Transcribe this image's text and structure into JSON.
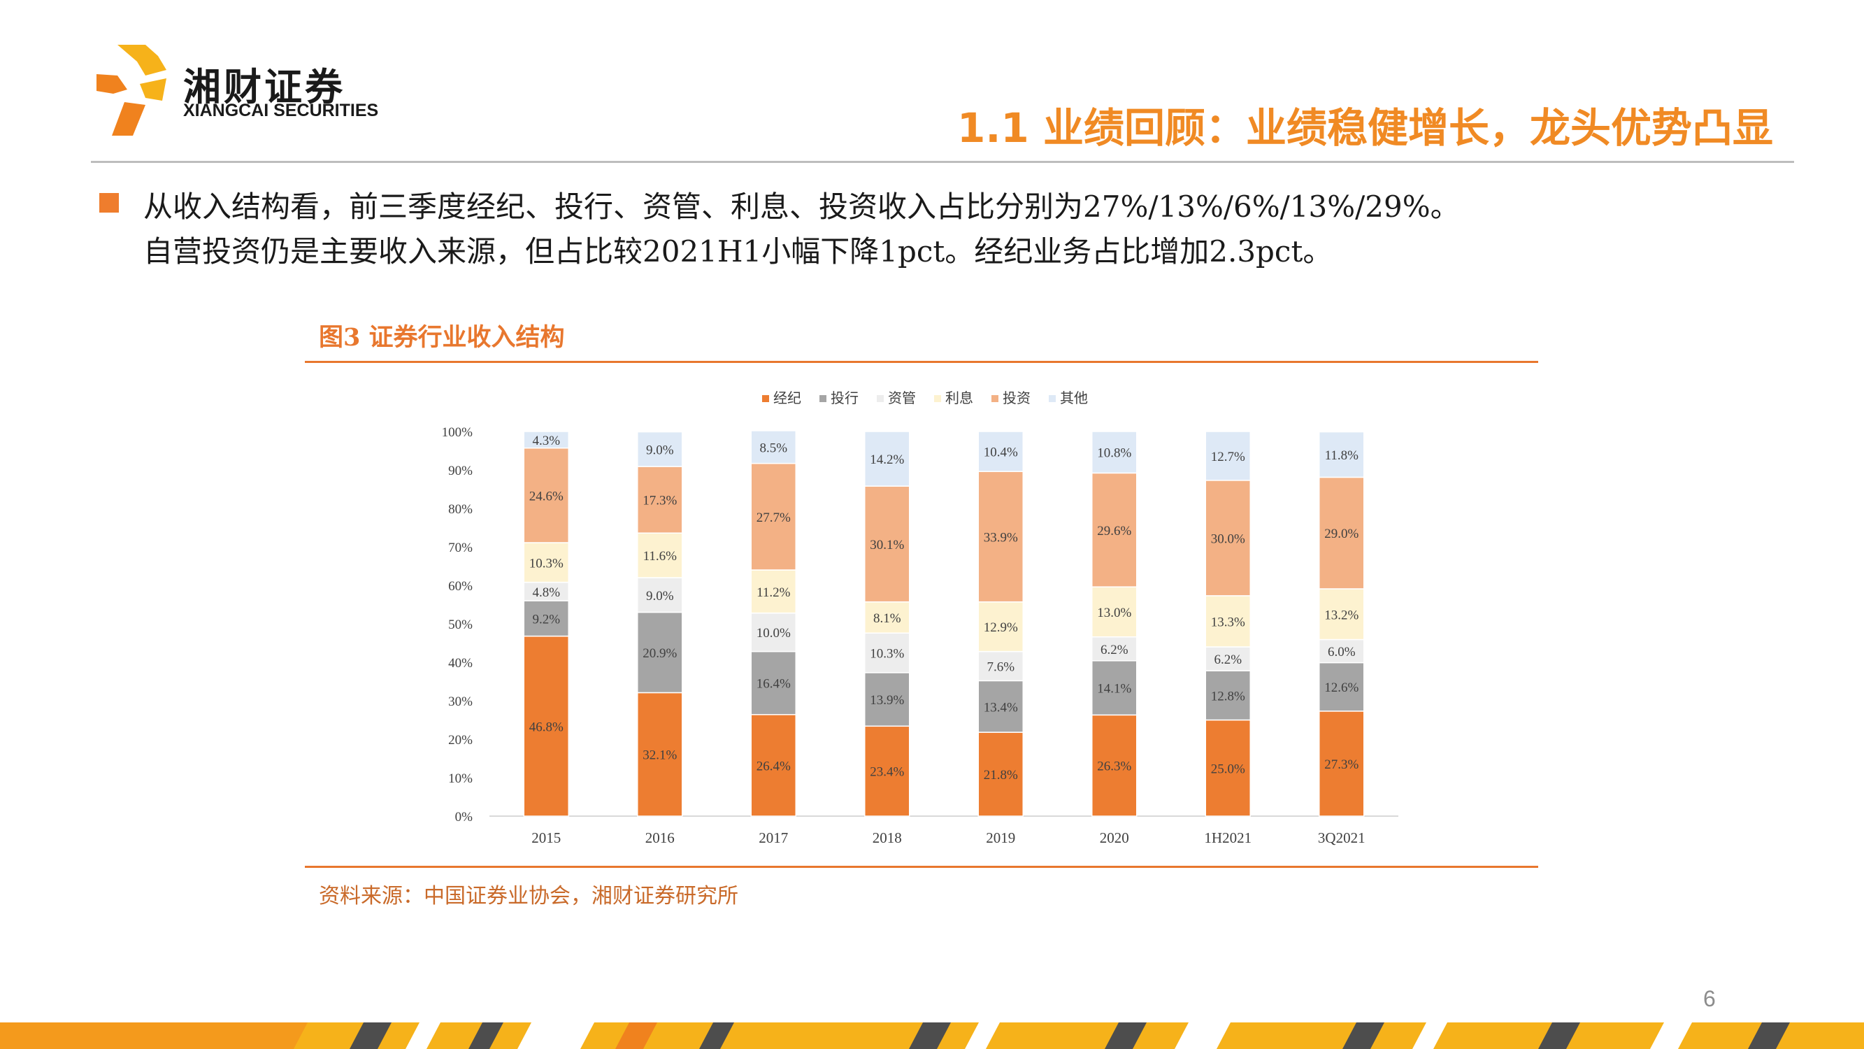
{
  "logo": {
    "name_cn": "湘财证券",
    "name_en": "XIANGCAI SECURITIES"
  },
  "header": {
    "section_title": "1.1 业绩回顾：业绩稳健增长，龙头优势凸显"
  },
  "body": {
    "line1": "从收入结构看，前三季度经纪、投行、资管、利息、投资收入占比分别为27%/13%/6%/13%/29%。",
    "line2": "自营投资仍是主要收入来源，但占比较2021H1小幅下降1pct。经纪业务占比增加2.3pct。"
  },
  "figure": {
    "title": "图3 证券行业收入结构",
    "source": "资料来源：中国证券业协会，湘财证券研究所"
  },
  "page_number": "6",
  "colors": {
    "accent": "#f08a24",
    "rule": "#e8772e"
  },
  "chart_data": {
    "type": "bar",
    "stacked": true,
    "categories": [
      "2015",
      "2016",
      "2017",
      "2018",
      "2019",
      "2020",
      "1H2021",
      "3Q2021"
    ],
    "y_ticks": [
      "0%",
      "10%",
      "20%",
      "30%",
      "40%",
      "50%",
      "60%",
      "70%",
      "80%",
      "90%",
      "100%"
    ],
    "ylim": [
      0,
      100
    ],
    "legend_position": "top",
    "series": [
      {
        "name": "经纪",
        "color": "#ed7d31",
        "values": [
          46.8,
          32.1,
          26.4,
          23.4,
          21.8,
          26.3,
          25.0,
          27.3
        ],
        "labels": [
          "46.8%",
          "32.1%",
          "26.4%",
          "23.4%",
          "21.8%",
          "26.3%",
          "25.0%",
          "27.3%"
        ]
      },
      {
        "name": "投行",
        "color": "#a5a5a5",
        "values": [
          9.2,
          20.9,
          16.4,
          13.9,
          13.4,
          14.1,
          12.8,
          12.6
        ],
        "labels": [
          "9.2%",
          "20.9%",
          "16.4%",
          "13.9%",
          "13.4%",
          "14.1%",
          "12.8%",
          "12.6%"
        ]
      },
      {
        "name": "资管",
        "color": "#ededed",
        "values": [
          4.8,
          9.0,
          10.0,
          10.3,
          7.6,
          6.2,
          6.2,
          6.0
        ],
        "labels": [
          "4.8%",
          "9.0%",
          "10.0%",
          "10.3%",
          "7.6%",
          "6.2%",
          "6.2%",
          "6.0%"
        ]
      },
      {
        "name": "利息",
        "color": "#fdf2d0",
        "values": [
          10.3,
          11.6,
          11.2,
          8.1,
          12.9,
          13.0,
          13.3,
          13.2
        ],
        "labels": [
          "10.3%",
          "11.6%",
          "11.2%",
          "8.1%",
          "12.9%",
          "13.0%",
          "13.3%",
          "13.2%"
        ]
      },
      {
        "name": "投资",
        "color": "#f3b185",
        "values": [
          24.6,
          17.3,
          27.7,
          30.1,
          33.9,
          29.6,
          30.0,
          29.0
        ],
        "labels": [
          "24.6%",
          "17.3%",
          "27.7%",
          "30.1%",
          "33.9%",
          "29.6%",
          "30.0%",
          "29.0%"
        ]
      },
      {
        "name": "其他",
        "color": "#dee9f6",
        "values": [
          4.3,
          9.0,
          8.5,
          14.2,
          10.4,
          10.8,
          12.7,
          11.8
        ],
        "labels": [
          "4.3%",
          "9.0%",
          "8.5%",
          "14.2%",
          "10.4%",
          "10.8%",
          "12.7%",
          "11.8%"
        ]
      }
    ]
  }
}
